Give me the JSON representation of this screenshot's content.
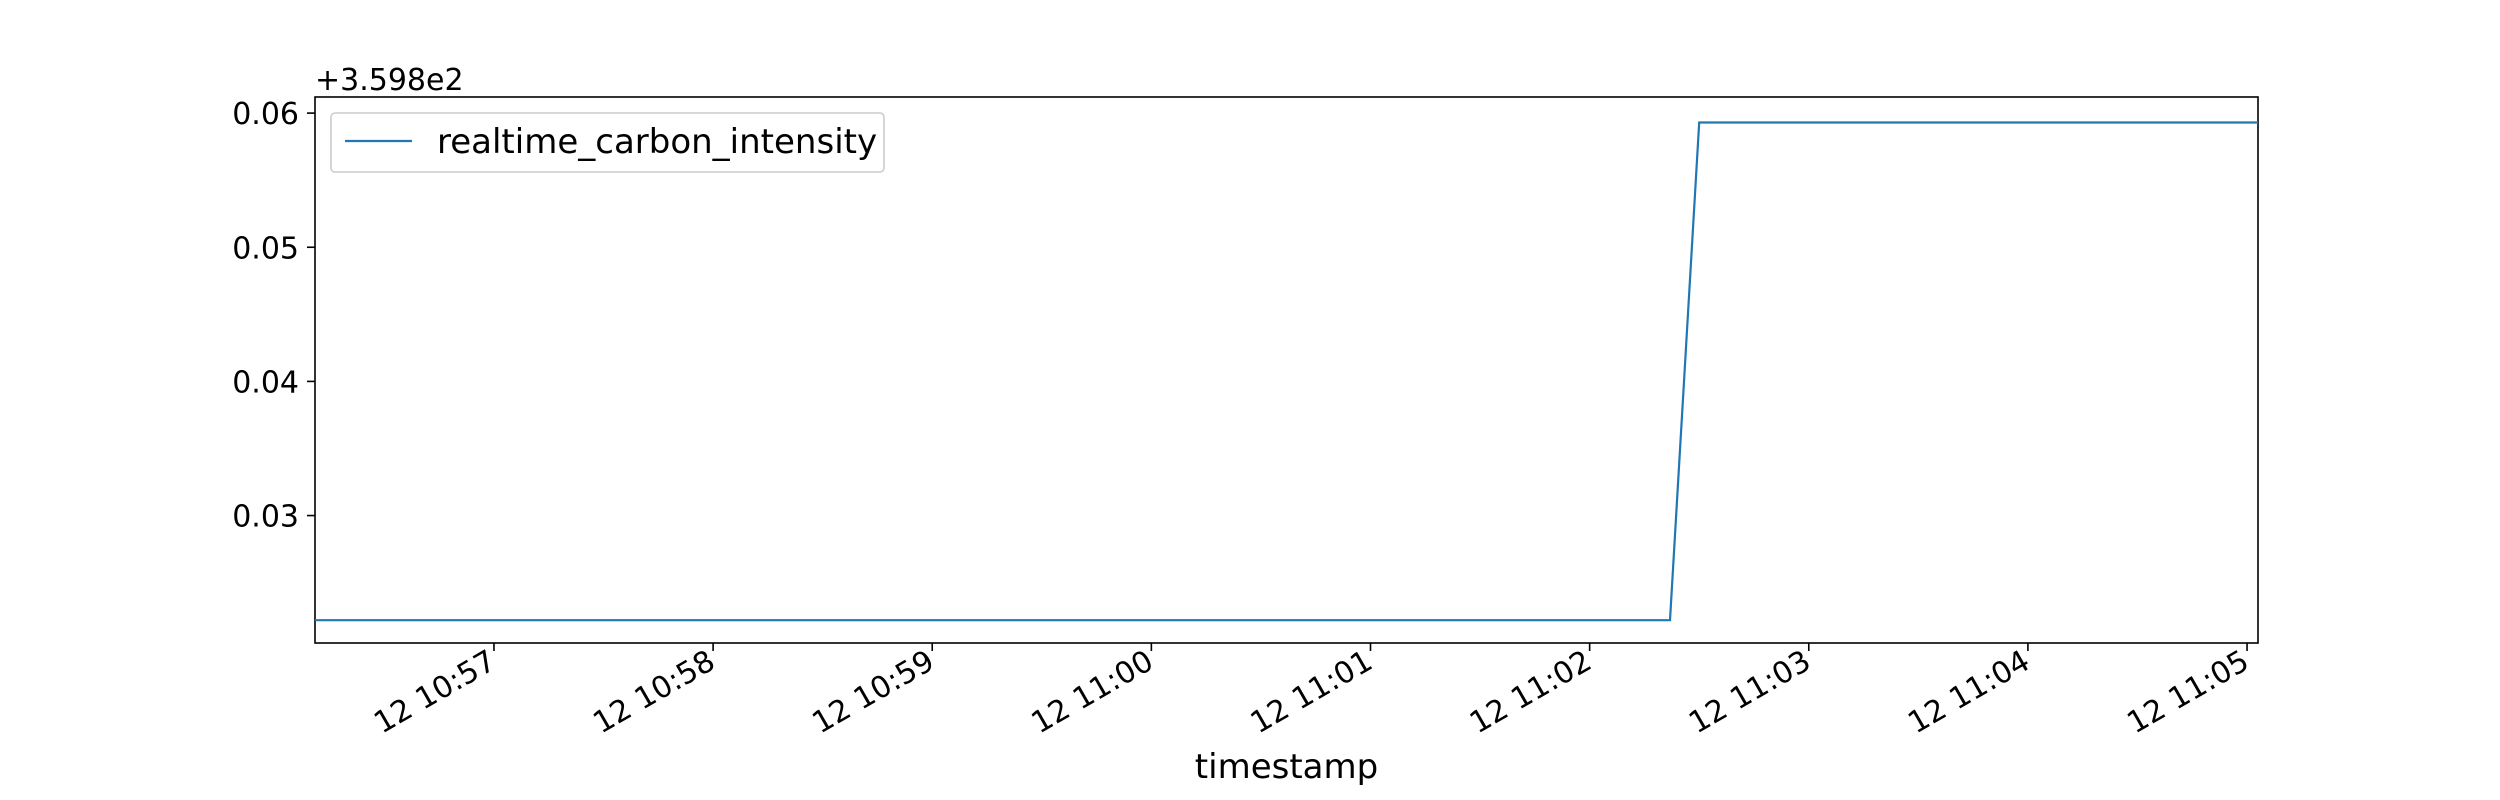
{
  "chart_data": {
    "type": "line",
    "title": "",
    "xlabel": "timestamp",
    "ylabel": "",
    "offset_text": "+3.598e2",
    "y_offset": 359.8,
    "xlim": [
      "10:56:11",
      "11:05:03"
    ],
    "ylim": [
      0.0205,
      0.0612
    ],
    "x_ticks": [
      "10:57",
      "10:58",
      "10:59",
      "11:00",
      "11:01",
      "11:02",
      "11:03",
      "11:04",
      "11:05"
    ],
    "x_tick_labels": [
      "12 10:57",
      "12 10:58",
      "12 10:59",
      "12 11:00",
      "12 11:01",
      "12 11:02",
      "12 11:03",
      "12 11:04",
      "12 11:05"
    ],
    "y_ticks": [
      0.03,
      0.04,
      0.05,
      0.06
    ],
    "y_tick_labels": [
      "0.03",
      "0.04",
      "0.05",
      "0.06"
    ],
    "grid": false,
    "legend_position": "upper-left",
    "series": [
      {
        "name": "realtime_carbon_intensity",
        "color": "#1f77b4",
        "x": [
          "10:56:11",
          "11:02:22",
          "11:02:30",
          "11:05:03"
        ],
        "y": [
          0.0222,
          0.0222,
          0.0593,
          0.0593
        ]
      }
    ]
  }
}
